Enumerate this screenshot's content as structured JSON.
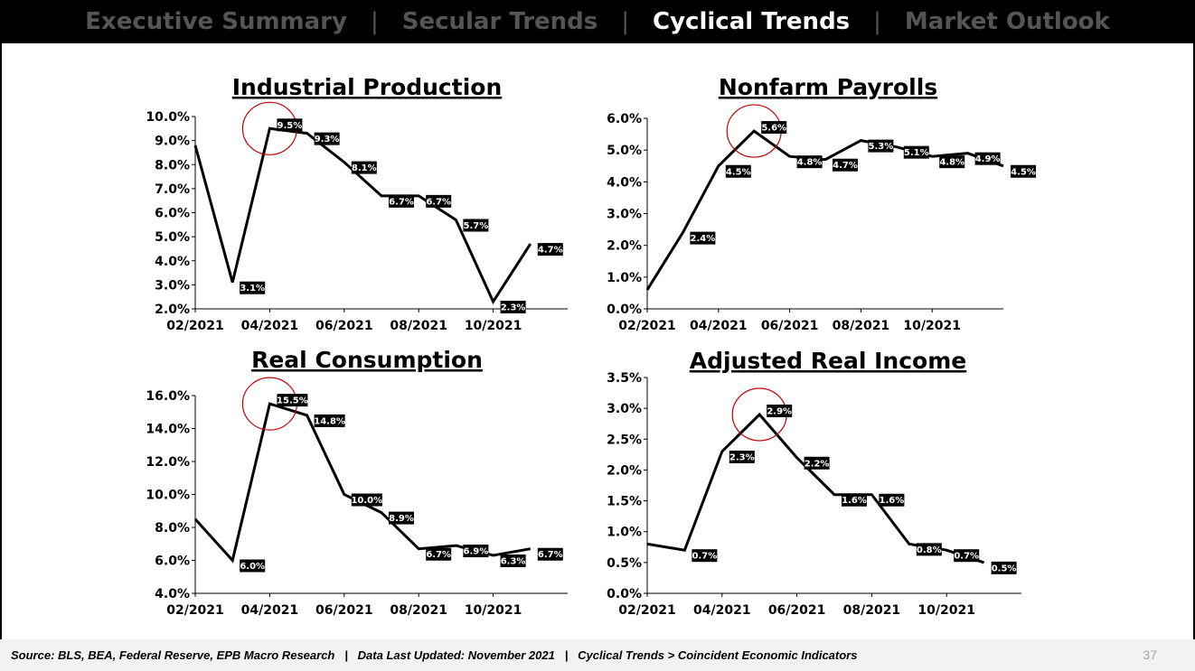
{
  "nav": {
    "items": [
      {
        "label": "Executive Summary",
        "active": false
      },
      {
        "label": "Secular Trends",
        "active": false
      },
      {
        "label": "Cyclical Trends",
        "active": true
      },
      {
        "label": "Market Outlook",
        "active": false
      }
    ],
    "separator": "|"
  },
  "footer": {
    "text": "Source: BLS, BEA, Federal Reserve, EPB Macro Research   |   Data Last Updated: November 2021   |   Cyclical Trends > Coincident Economic Indicators",
    "page_number": "37"
  },
  "colors": {
    "line": "#000000",
    "highlight_circle": "#c00000",
    "label_bg": "#000000",
    "label_text": "#ffffff"
  },
  "chart_data": [
    {
      "type": "line",
      "title": "Industrial Production",
      "xlabel": "",
      "ylabel": "",
      "x_ticks": [
        "02/2021",
        "04/2021",
        "06/2021",
        "08/2021",
        "10/2021"
      ],
      "ylim": [
        0.02,
        0.1
      ],
      "y_ticks": [
        "2.0%",
        "3.0%",
        "4.0%",
        "5.0%",
        "6.0%",
        "7.0%",
        "8.0%",
        "9.0%",
        "10.0%"
      ],
      "series": [
        {
          "x": [
            0,
            1,
            2,
            3,
            4,
            5,
            6,
            7,
            8,
            9,
            10
          ],
          "values": [
            0.088,
            0.031,
            0.095,
            0.093,
            0.081,
            0.067,
            0.067,
            0.057,
            0.023,
            0.047,
            null
          ]
        }
      ],
      "data_labels": [
        {
          "i": 1,
          "text": "3.1%"
        },
        {
          "i": 2,
          "text": "9.5%"
        },
        {
          "i": 3,
          "text": "9.3%"
        },
        {
          "i": 4,
          "text": "8.1%"
        },
        {
          "i": 5,
          "text": "6.7%"
        },
        {
          "i": 6,
          "text": "6.7%"
        },
        {
          "i": 7,
          "text": "5.7%"
        },
        {
          "i": 8,
          "text": "2.3%"
        },
        {
          "i": 9,
          "text": "4.7%"
        }
      ],
      "highlight_index": 2,
      "grid": false,
      "legend": "none"
    },
    {
      "type": "line",
      "title": "Nonfarm Payrolls",
      "xlabel": "",
      "ylabel": "",
      "x_ticks": [
        "02/2021",
        "04/2021",
        "06/2021",
        "08/2021",
        "10/2021"
      ],
      "ylim": [
        0.0,
        0.06
      ],
      "y_ticks": [
        "0.0%",
        "1.0%",
        "2.0%",
        "3.0%",
        "4.0%",
        "5.0%",
        "6.0%"
      ],
      "series": [
        {
          "x": [
            0,
            1,
            2,
            3,
            4,
            5,
            6,
            7,
            8,
            9,
            10
          ],
          "values": [
            0.006,
            0.024,
            0.045,
            0.056,
            0.048,
            0.047,
            0.053,
            0.051,
            0.048,
            0.049,
            0.045
          ]
        }
      ],
      "data_labels": [
        {
          "i": 1,
          "text": "2.4%"
        },
        {
          "i": 2,
          "text": "4.5%"
        },
        {
          "i": 3,
          "text": "5.6%"
        },
        {
          "i": 4,
          "text": "4.8%"
        },
        {
          "i": 5,
          "text": "4.7%"
        },
        {
          "i": 6,
          "text": "5.3%"
        },
        {
          "i": 7,
          "text": "5.1%"
        },
        {
          "i": 8,
          "text": "4.8%"
        },
        {
          "i": 9,
          "text": "4.9%"
        },
        {
          "i": 10,
          "text": "4.5%"
        }
      ],
      "highlight_index": 3,
      "grid": false,
      "legend": "none"
    },
    {
      "type": "line",
      "title": "Real Consumption",
      "xlabel": "",
      "ylabel": "",
      "x_ticks": [
        "02/2021",
        "04/2021",
        "06/2021",
        "08/2021",
        "10/2021"
      ],
      "ylim": [
        0.04,
        0.16
      ],
      "y_ticks": [
        "4.0%",
        "6.0%",
        "8.0%",
        "10.0%",
        "12.0%",
        "14.0%",
        "16.0%"
      ],
      "series": [
        {
          "x": [
            0,
            1,
            2,
            3,
            4,
            5,
            6,
            7,
            8,
            9,
            10
          ],
          "values": [
            0.085,
            0.06,
            0.155,
            0.148,
            0.1,
            0.089,
            0.067,
            0.069,
            0.063,
            0.067,
            null
          ]
        }
      ],
      "data_labels": [
        {
          "i": 1,
          "text": "6.0%"
        },
        {
          "i": 2,
          "text": "15.5%"
        },
        {
          "i": 3,
          "text": "14.8%"
        },
        {
          "i": 4,
          "text": "10.0%"
        },
        {
          "i": 5,
          "text": "8.9%"
        },
        {
          "i": 6,
          "text": "6.7%"
        },
        {
          "i": 7,
          "text": "6.9%"
        },
        {
          "i": 8,
          "text": "6.3%"
        },
        {
          "i": 9,
          "text": "6.7%"
        }
      ],
      "highlight_index": 2,
      "grid": false,
      "legend": "none"
    },
    {
      "type": "line",
      "title": "Adjusted Real Income",
      "xlabel": "",
      "ylabel": "",
      "x_ticks": [
        "02/2021",
        "04/2021",
        "06/2021",
        "08/2021",
        "10/2021"
      ],
      "ylim": [
        0.0,
        0.035
      ],
      "y_ticks": [
        "0.0%",
        "0.5%",
        "1.0%",
        "1.5%",
        "2.0%",
        "2.5%",
        "3.0%",
        "3.5%"
      ],
      "series": [
        {
          "x": [
            0,
            1,
            2,
            3,
            4,
            5,
            6,
            7,
            8,
            9,
            10
          ],
          "values": [
            0.008,
            0.007,
            0.023,
            0.029,
            0.022,
            0.016,
            0.016,
            0.008,
            0.007,
            0.005,
            null
          ]
        }
      ],
      "data_labels": [
        {
          "i": 1,
          "text": "0.7%"
        },
        {
          "i": 2,
          "text": "2.3%"
        },
        {
          "i": 3,
          "text": "2.9%"
        },
        {
          "i": 4,
          "text": "2.2%"
        },
        {
          "i": 5,
          "text": "1.6%"
        },
        {
          "i": 6,
          "text": "1.6%"
        },
        {
          "i": 7,
          "text": "0.8%"
        },
        {
          "i": 8,
          "text": "0.7%"
        },
        {
          "i": 9,
          "text": "0.5%"
        }
      ],
      "highlight_index": 3,
      "grid": false,
      "legend": "none"
    }
  ]
}
